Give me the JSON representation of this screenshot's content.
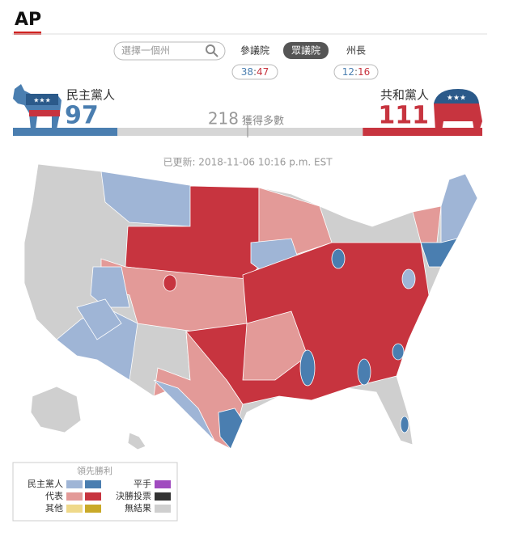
{
  "header": {
    "logo": "AP"
  },
  "search": {
    "placeholder": "選擇一個州"
  },
  "tabs": [
    {
      "label": "參議院",
      "score": {
        "democrat": 38,
        "republican": 47
      }
    },
    {
      "label": "眾議院",
      "active": true
    },
    {
      "label": "州長",
      "score": {
        "democrat": 12,
        "republican": 16
      }
    }
  ],
  "parties": {
    "democrat": {
      "name": "民主黨人",
      "seats": 97,
      "color": "#4a7eb0"
    },
    "republican": {
      "name": "共和黨人",
      "seats": 111,
      "color": "#c7343f"
    }
  },
  "majority": {
    "value": 218,
    "label": "獲得多數"
  },
  "updated": "已更新: 2018-11-06 10:16 p.m. EST",
  "legend": {
    "title": "領先勝利",
    "left": [
      "民主黨人",
      "代表",
      "其他"
    ],
    "right": [
      "平手",
      "決勝投票",
      "無結果"
    ]
  }
}
